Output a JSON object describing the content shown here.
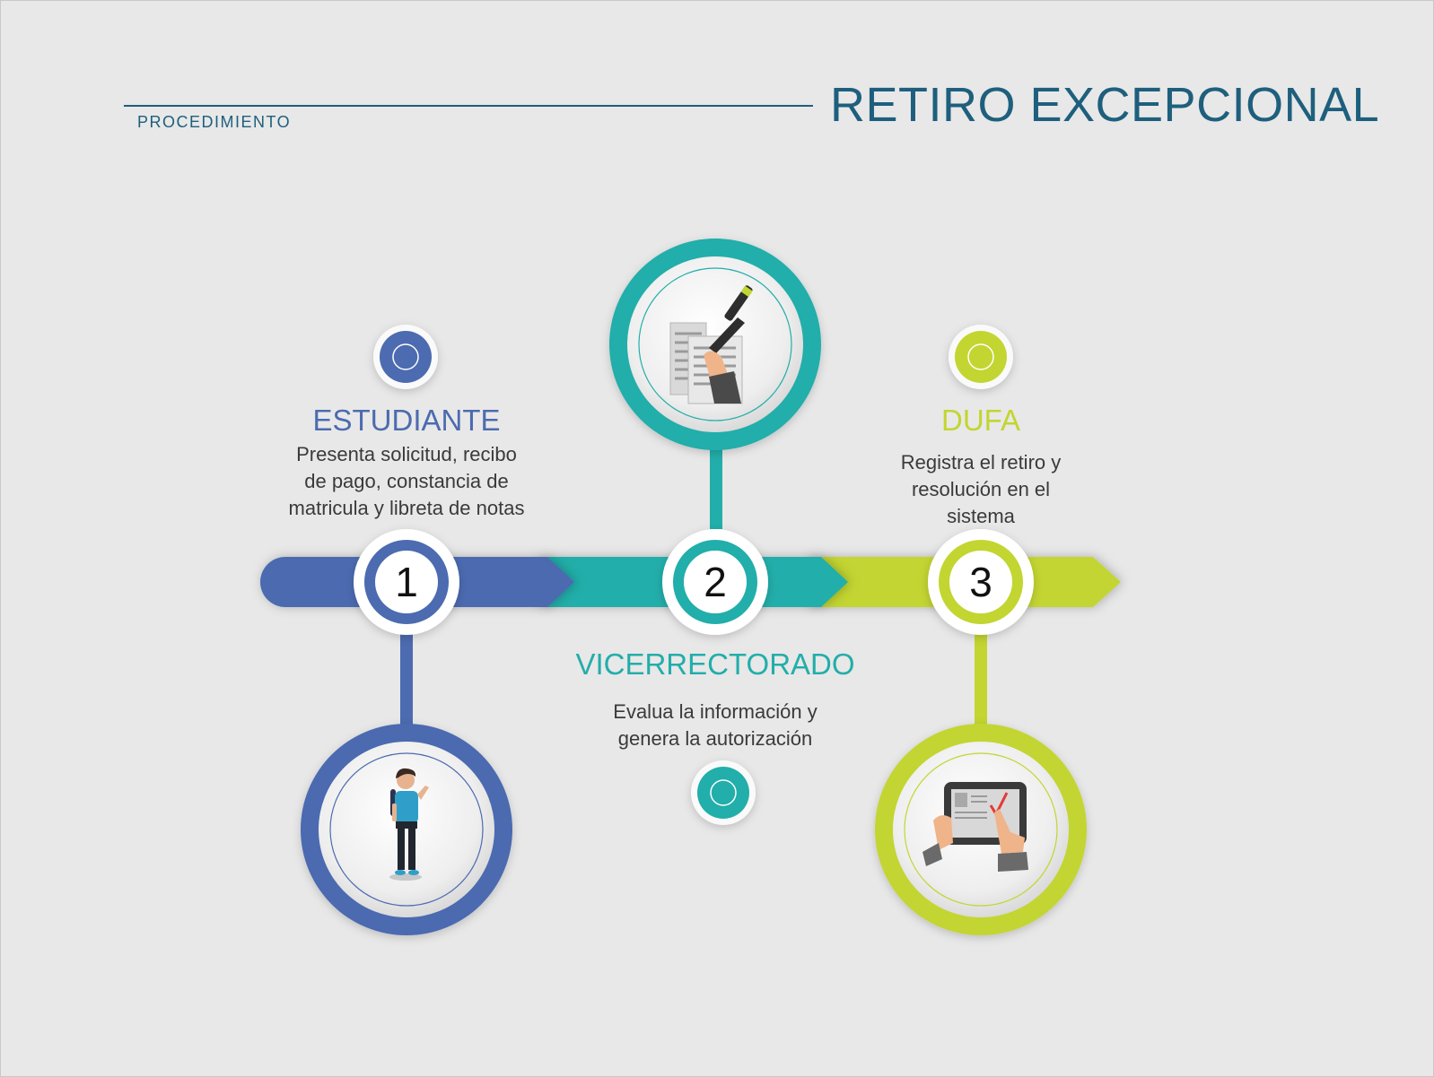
{
  "header": {
    "subtitle": "PROCEDIMIENTO",
    "title": "RETIRO EXCEPCIONAL"
  },
  "colors": {
    "blue": "#4c6bb0",
    "teal": "#22aeaa",
    "green": "#c3d531",
    "header": "#1e5f7d"
  },
  "steps": [
    {
      "number": "1",
      "role": "ESTUDIANTE",
      "description": [
        "Presenta solicitud, recibo",
        "de pago, constancia de",
        "matricula y libreta de notas"
      ],
      "icon": "student-icon"
    },
    {
      "number": "2",
      "role": "VICERRECTORADO",
      "description": [
        "Evalua la información y",
        "genera la autorización"
      ],
      "icon": "signing-document-icon"
    },
    {
      "number": "3",
      "role": "DUFA",
      "description": [
        "Registra el retiro y",
        "resolución en el",
        "sistema"
      ],
      "icon": "tablet-check-icon"
    }
  ]
}
